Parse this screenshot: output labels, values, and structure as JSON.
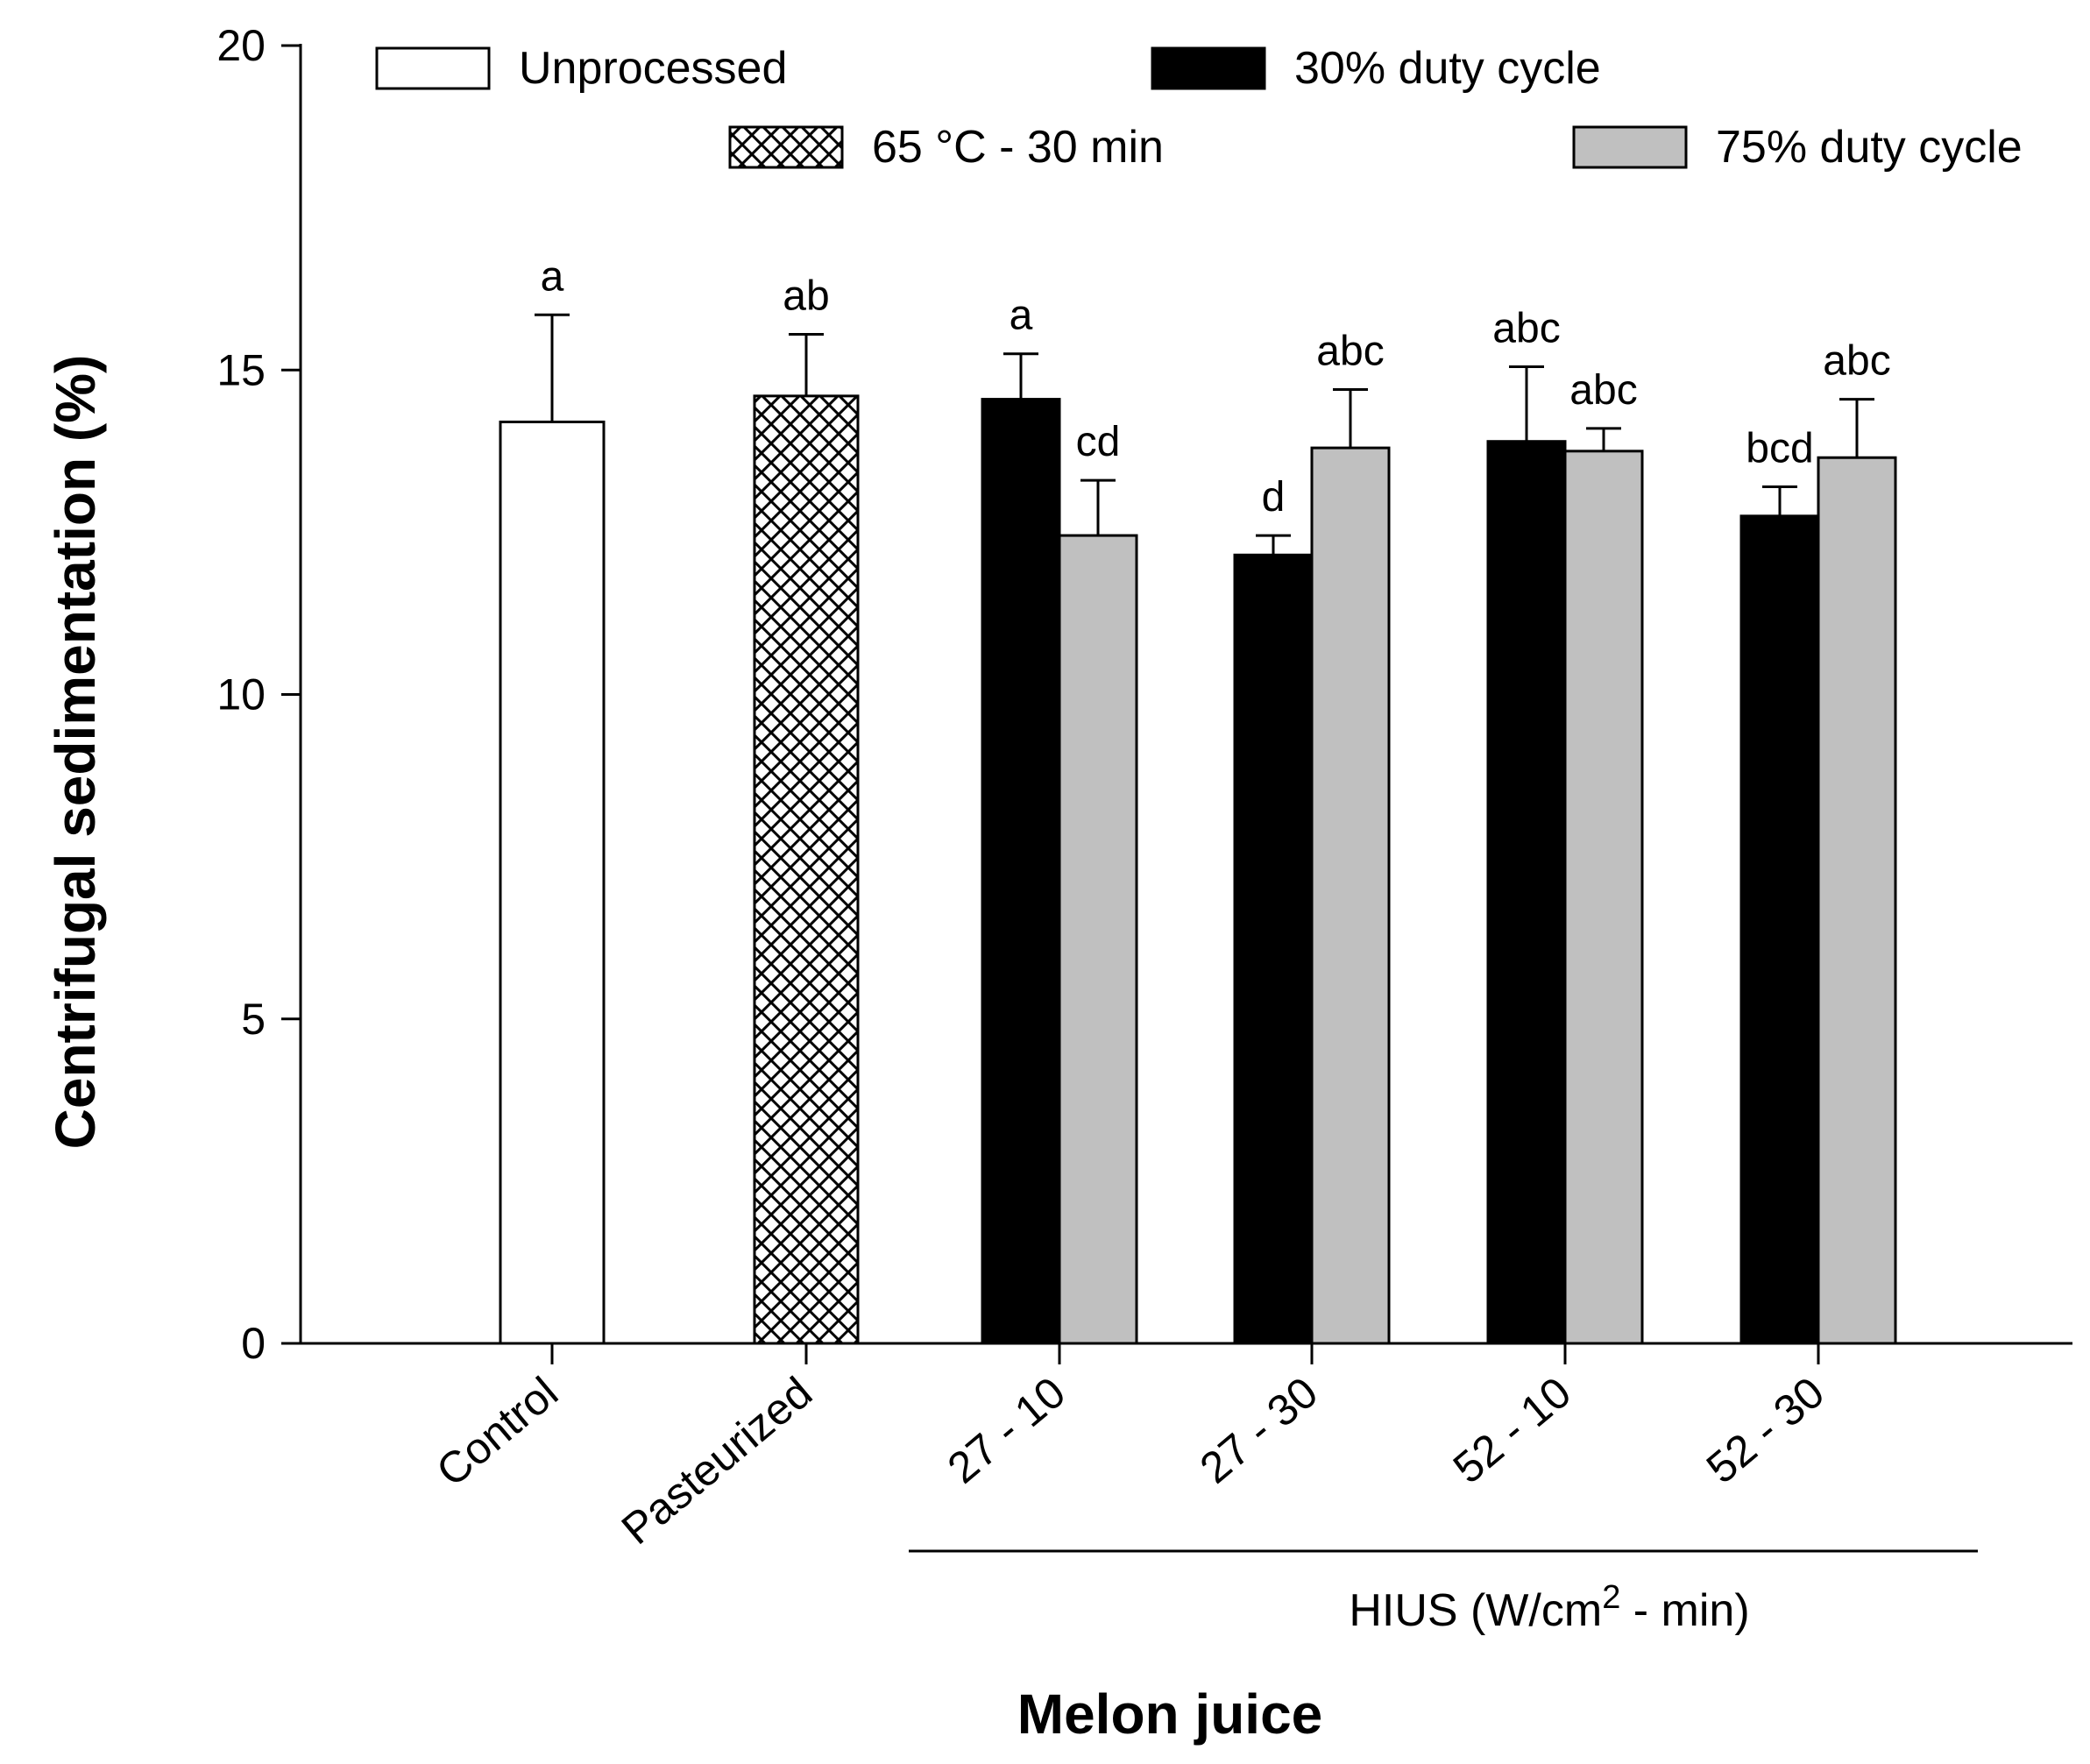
{
  "chart_data": {
    "type": "bar",
    "title": "",
    "xlabel": "Melon juice",
    "ylabel": "Centrifugal sedimentation (%)",
    "ylim": [
      0,
      20
    ],
    "yticks": [
      0,
      5,
      10,
      15,
      20
    ],
    "categories": [
      "Control",
      "Pasteurized",
      "27 - 10",
      "27 - 30",
      "52 - 10",
      "52 - 30"
    ],
    "group_label": {
      "prefix": "HIUS (W/cm",
      "sup": "2",
      "suffix": " - min)",
      "spans_categories": [
        "27 - 10",
        "27 - 30",
        "52 - 10",
        "52 - 30"
      ]
    },
    "legend": [
      {
        "name": "Unprocessed",
        "style": "white"
      },
      {
        "name": "30% duty cycle",
        "style": "black"
      },
      {
        "name": "65 °C - 30 min",
        "style": "crosshatch"
      },
      {
        "name": "75% duty cycle",
        "style": "gray"
      }
    ],
    "series": [
      {
        "name": "Unprocessed",
        "style": "white",
        "points": [
          {
            "category": "Control",
            "value": 14.2,
            "error": 1.65,
            "letter": "a"
          }
        ]
      },
      {
        "name": "65 °C - 30 min",
        "style": "crosshatch",
        "points": [
          {
            "category": "Pasteurized",
            "value": 14.6,
            "error": 0.95,
            "letter": "ab"
          }
        ]
      },
      {
        "name": "30% duty cycle",
        "style": "black",
        "points": [
          {
            "category": "27 - 10",
            "value": 14.55,
            "error": 0.7,
            "letter": "a"
          },
          {
            "category": "27 - 30",
            "value": 12.15,
            "error": 0.3,
            "letter": "d"
          },
          {
            "category": "52 - 10",
            "value": 13.9,
            "error": 1.15,
            "letter": "abc"
          },
          {
            "category": "52 - 30",
            "value": 12.75,
            "error": 0.45,
            "letter": "bcd"
          }
        ]
      },
      {
        "name": "75% duty cycle",
        "style": "gray",
        "points": [
          {
            "category": "27 - 10",
            "value": 12.45,
            "error": 0.85,
            "letter": "cd"
          },
          {
            "category": "27 - 30",
            "value": 13.8,
            "error": 0.9,
            "letter": "abc"
          },
          {
            "category": "52 - 10",
            "value": 13.75,
            "error": 0.35,
            "letter": "abc"
          },
          {
            "category": "52 - 30",
            "value": 13.65,
            "error": 0.9,
            "letter": "abc"
          }
        ]
      }
    ],
    "colors": {
      "black": "#000000",
      "gray": "#c0c0c0",
      "white": "#ffffff",
      "axis": "#000000"
    }
  }
}
